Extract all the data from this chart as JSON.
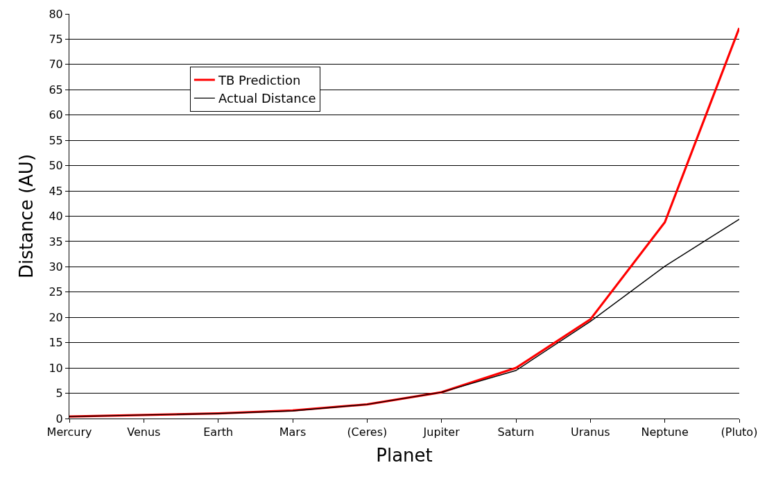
{
  "chart_data": {
    "type": "line",
    "xlabel": "Planet",
    "ylabel": "Distance (AU)",
    "categories": [
      "Mercury",
      "Venus",
      "Earth",
      "Mars",
      "(Ceres)",
      "Jupiter",
      "Saturn",
      "Uranus",
      "Neptune",
      "(Pluto)"
    ],
    "series": [
      {
        "name": "TB Prediction",
        "color": "#ff0000",
        "values": [
          0.4,
          0.7,
          1.0,
          1.6,
          2.8,
          5.2,
          10.0,
          19.6,
          38.8,
          77.2
        ]
      },
      {
        "name": "Actual Distance",
        "color": "#000000",
        "values": [
          0.4,
          0.7,
          1.0,
          1.5,
          2.8,
          5.2,
          9.5,
          19.2,
          30.1,
          39.4
        ]
      }
    ],
    "ylim": [
      0,
      80
    ],
    "yticks": [
      0,
      5,
      10,
      15,
      20,
      25,
      30,
      35,
      40,
      45,
      50,
      55,
      60,
      65,
      70,
      75,
      80
    ],
    "grid": "y",
    "legend": "top left",
    "line_style": "solid",
    "marker": "none"
  }
}
